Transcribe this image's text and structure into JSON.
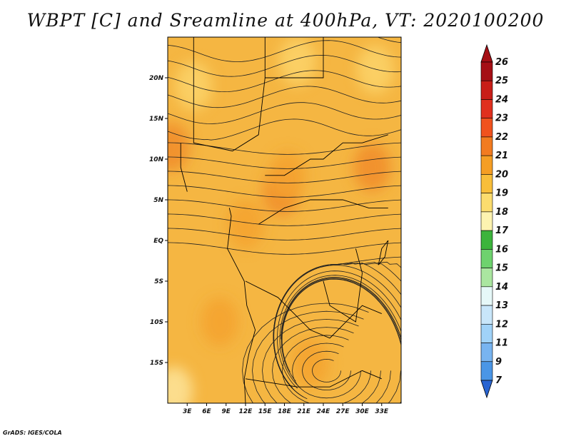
{
  "title": "WBPT [C] and Sreamline at 400hPa, VT: 2020100200",
  "credit": "GrADS: IGES/COLA",
  "map": {
    "lon_range": [
      0,
      36
    ],
    "lat_range": [
      -20,
      25
    ],
    "lat_ticks": [
      {
        "value": 20,
        "label": "20N"
      },
      {
        "value": 15,
        "label": "15N"
      },
      {
        "value": 10,
        "label": "10N"
      },
      {
        "value": 5,
        "label": "5N"
      },
      {
        "value": 0,
        "label": "EQ"
      },
      {
        "value": -5,
        "label": "5S"
      },
      {
        "value": -10,
        "label": "10S"
      },
      {
        "value": -15,
        "label": "15S"
      }
    ],
    "lon_ticks": [
      {
        "value": 3,
        "label": "3E"
      },
      {
        "value": 6,
        "label": "6E"
      },
      {
        "value": 9,
        "label": "9E"
      },
      {
        "value": 12,
        "label": "12E"
      },
      {
        "value": 15,
        "label": "15E"
      },
      {
        "value": 18,
        "label": "18E"
      },
      {
        "value": 21,
        "label": "21E"
      },
      {
        "value": 24,
        "label": "24E"
      },
      {
        "value": 27,
        "label": "27E"
      },
      {
        "value": 30,
        "label": "30E"
      },
      {
        "value": 33,
        "label": "33E"
      }
    ],
    "base_color": "#f5b642",
    "warm_areas": [
      {
        "lon": 17.5,
        "lat": 6,
        "value": 22,
        "color": "#f08c28"
      },
      {
        "lon": 18.5,
        "lat": 8,
        "value": 21,
        "color": "#f5a22e"
      },
      {
        "lon": 31.5,
        "lat": 9,
        "value": 22,
        "color": "#f08c28"
      },
      {
        "lon": 0.5,
        "lat": 11.5,
        "value": 22,
        "color": "#f08c28"
      },
      {
        "lon": 22,
        "lat": -15,
        "value": 21,
        "color": "#f5a22e"
      },
      {
        "lon": 8,
        "lat": -10,
        "value": 21,
        "color": "#f5a22e"
      },
      {
        "lon": 12,
        "lat": 2,
        "value": 21,
        "color": "#f5a22e"
      }
    ],
    "cool_areas": [
      {
        "lon": 20,
        "lat": 22,
        "value": 20,
        "color": "#fbd36a"
      },
      {
        "lon": 32,
        "lat": 21,
        "value": 20,
        "color": "#fbd36a"
      },
      {
        "lon": 4,
        "lat": 19,
        "value": 20,
        "color": "#fbd36a"
      },
      {
        "lon": 1,
        "lat": -18.5,
        "value": 19,
        "color": "#fde49a"
      }
    ]
  },
  "colorbar": {
    "levels": [
      "26",
      "25",
      "24",
      "23",
      "22",
      "21",
      "20",
      "19",
      "18",
      "17",
      "16",
      "15",
      "14",
      "13",
      "12",
      "11",
      "9",
      "7"
    ],
    "colors": [
      "#a50f15",
      "#c81e18",
      "#e0301e",
      "#f0521e",
      "#f27b20",
      "#f59e24",
      "#f8be3a",
      "#fbdc6e",
      "#fdf3b0",
      "#3cb43c",
      "#6ed26e",
      "#aae6a0",
      "#e6f8f8",
      "#c8e6fa",
      "#a0d2f8",
      "#78b4f0",
      "#4a96e6",
      "#2864d2"
    ],
    "top_cap_color": "#a50f15",
    "bottom_cap_color": "#2864d2"
  }
}
